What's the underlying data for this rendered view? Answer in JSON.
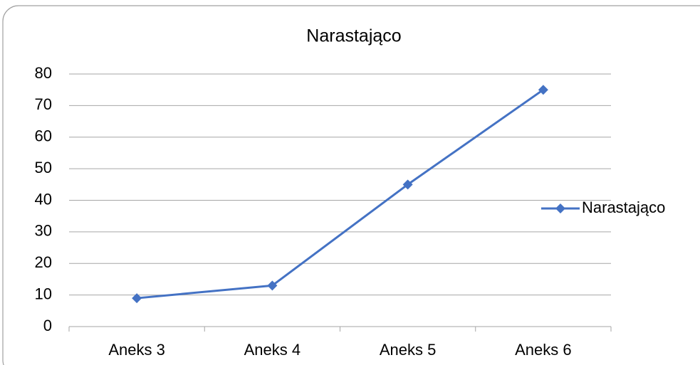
{
  "chart_data": {
    "type": "line",
    "title": "Narastająco",
    "categories": [
      "Aneks 3",
      "Aneks 4",
      "Aneks 5",
      "Aneks 6"
    ],
    "series": [
      {
        "name": "Narastająco",
        "color": "#4472c4",
        "values": [
          9,
          13,
          45,
          75
        ]
      }
    ],
    "ylim": [
      0,
      80
    ],
    "yticks": [
      0,
      10,
      20,
      30,
      40,
      50,
      60,
      70,
      80
    ],
    "grid": true,
    "legend": "right"
  }
}
